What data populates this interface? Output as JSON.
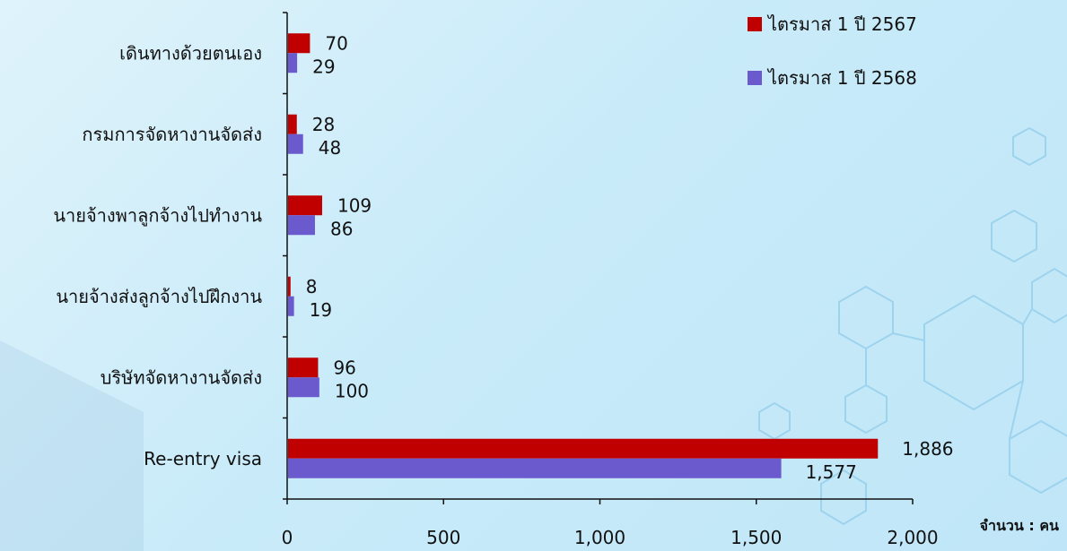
{
  "chart_data": {
    "type": "bar",
    "orientation": "horizontal",
    "categories": [
      "เดินทางด้วยตนเอง",
      "กรมการจัดหางานจัดส่ง",
      "นายจ้างพาลูกจ้างไปทำงาน",
      "นายจ้างส่งลูกจ้างไปฝึกงาน",
      "บริษัทจัดหางานจัดส่ง",
      "Re-entry visa"
    ],
    "series": [
      {
        "name": "ไตรมาส 1 ปี 2567",
        "color": "#c00000",
        "values": [
          70,
          28,
          109,
          8,
          96,
          1886
        ],
        "labels": [
          "70",
          "28",
          "109",
          "8",
          "96",
          "1,886"
        ]
      },
      {
        "name": "ไตรมาส 1 ปี 2568",
        "color": "#6a5acd",
        "values": [
          29,
          48,
          86,
          19,
          100,
          1577
        ],
        "labels": [
          "29",
          "48",
          "86",
          "19",
          "100",
          "1,577"
        ]
      }
    ],
    "xlim": [
      0,
      2000
    ],
    "xticks": [
      0,
      500,
      1000,
      1500,
      2000
    ],
    "xtick_labels": [
      "0",
      "500",
      "1,000",
      "1,500",
      "2,000"
    ],
    "unit_label": "จำนวน : คน",
    "legend_position": "top-right",
    "grid": false
  }
}
